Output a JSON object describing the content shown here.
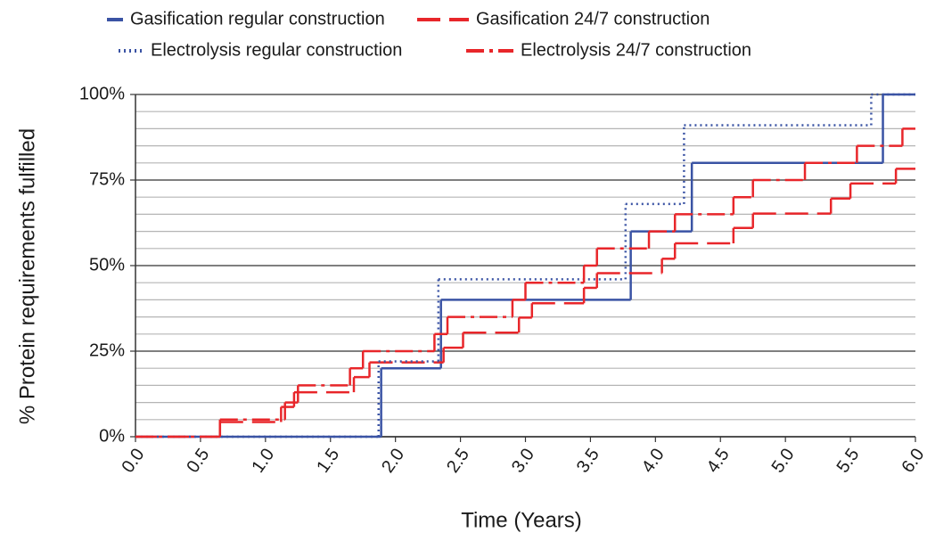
{
  "chart_data": {
    "type": "step",
    "x_label": "Time (Years)",
    "y_label": "% Protein requirements fulfilled",
    "xlim": [
      0,
      6
    ],
    "ylim": [
      0,
      100
    ],
    "xticks": [
      {
        "value": 0,
        "label": "0.0"
      },
      {
        "value": 0.5,
        "label": "0.5"
      },
      {
        "value": 1,
        "label": "1.0"
      },
      {
        "value": 1.5,
        "label": "1.5"
      },
      {
        "value": 2,
        "label": "2.0"
      },
      {
        "value": 2.5,
        "label": "2.5"
      },
      {
        "value": 3,
        "label": "3.0"
      },
      {
        "value": 3.5,
        "label": "3.5"
      },
      {
        "value": 4,
        "label": "4.0"
      },
      {
        "value": 4.5,
        "label": "4.5"
      },
      {
        "value": 5,
        "label": "5.0"
      },
      {
        "value": 5.5,
        "label": "5.5"
      },
      {
        "value": 6,
        "label": "6.0"
      }
    ],
    "yticks": [
      {
        "value": 0,
        "label": "0%"
      },
      {
        "value": 25,
        "label": "25%"
      },
      {
        "value": 50,
        "label": "50%"
      },
      {
        "value": 75,
        "label": "75%"
      },
      {
        "value": 100,
        "label": "100%"
      }
    ],
    "minor_yticks": [
      5,
      10,
      15,
      20,
      30,
      35,
      40,
      45,
      55,
      60,
      65,
      70,
      80,
      85,
      90,
      95
    ],
    "grid": true,
    "series": [
      {
        "name": "Gasification regular construction",
        "color": "#3a53a4",
        "style": "solid",
        "x": [
          0,
          1.89,
          2.35,
          3.81,
          4.28,
          5.75
        ],
        "values": [
          0,
          20,
          40,
          60,
          80,
          100
        ]
      },
      {
        "name": "Gasification 24/7 construction",
        "color": "#e8262a",
        "style": "dashed",
        "x": [
          0,
          0.65,
          1.12,
          1.22,
          1.68,
          1.8,
          2.37,
          2.52,
          2.95,
          3.05,
          3.45,
          3.55,
          4.05,
          4.15,
          4.6,
          4.75,
          5.35,
          5.5,
          5.85
        ],
        "values": [
          0,
          4.3,
          8.7,
          13,
          17.4,
          21.7,
          26,
          30.4,
          34.8,
          39,
          43.5,
          47.8,
          52,
          56.5,
          61,
          65.2,
          69.6,
          74,
          78.3
        ]
      },
      {
        "name": "Electrolysis regular construction",
        "color": "#3a53a4",
        "style": "dotted",
        "x": [
          0,
          1.87,
          2.33,
          3.77,
          4.22,
          5.66
        ],
        "values": [
          0,
          22,
          46,
          68,
          91,
          100
        ]
      },
      {
        "name": "Electrolysis 24/7 construction",
        "color": "#e8262a",
        "style": "dashdot",
        "x": [
          0,
          0.65,
          1.15,
          1.25,
          1.65,
          1.75,
          2.3,
          2.4,
          2.9,
          3.0,
          3.45,
          3.55,
          3.95,
          4.15,
          4.6,
          4.75,
          5.15,
          5.55,
          5.9
        ],
        "values": [
          0,
          5,
          10,
          15,
          20,
          25,
          30,
          35,
          40,
          45,
          50,
          55,
          60,
          65,
          70,
          75,
          80,
          85,
          90
        ]
      }
    ]
  }
}
